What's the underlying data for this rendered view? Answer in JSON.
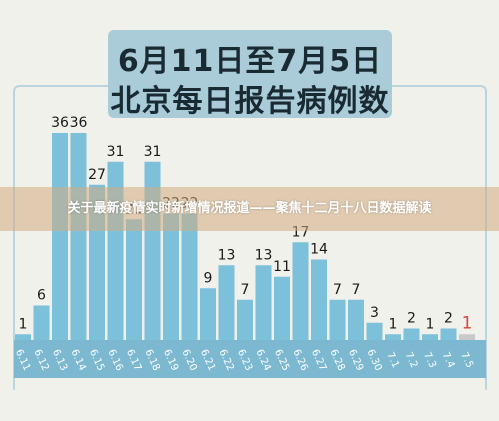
{
  "title_line1": "6月11日至7月5日",
  "title_line2": "北京每日报告病例数",
  "overlay_caption": "关于最新疫情实时新增情况报道——聚焦十二月十八日数据解读",
  "colors": {
    "bar": "#7cc0d9",
    "bar_last": "#c9c9c9",
    "axis_band": "#7cb8cf",
    "label": "#1a1a1a",
    "label_last": "#d9473a",
    "title_bg": "#a9ccd8",
    "frame": "#b9d6e0"
  },
  "chart_data": {
    "type": "bar",
    "categories": [
      "6.11",
      "6.12",
      "6.13",
      "6.14",
      "6.15",
      "6.16",
      "6.17",
      "6.18",
      "6.19",
      "6.20",
      "6.21",
      "6.22",
      "6.23",
      "6.24",
      "6.25",
      "6.26",
      "6.27",
      "6.28",
      "6.29",
      "6.30",
      "7.1",
      "7.2",
      "7.3",
      "7.4",
      "7.5"
    ],
    "values": [
      1,
      6,
      36,
      36,
      27,
      31,
      21,
      31,
      22,
      22,
      9,
      13,
      7,
      13,
      11,
      17,
      14,
      7,
      7,
      3,
      1,
      2,
      1,
      2,
      1
    ],
    "ylim": [
      0,
      40
    ],
    "data_labels": [
      "1",
      "6",
      "36",
      "36",
      "27",
      "31",
      "21",
      "31",
      "22",
      "22",
      "9",
      "13",
      "7",
      "13",
      "11",
      "17",
      "14",
      "7",
      "7",
      "3",
      "1",
      "2",
      "1",
      "2",
      "1"
    ]
  }
}
